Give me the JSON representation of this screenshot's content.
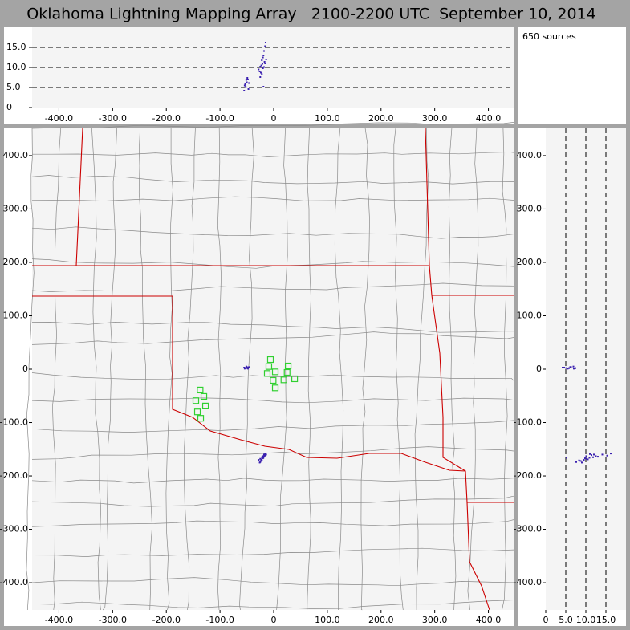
{
  "chart_data": {
    "type": "lma",
    "title": "Oklahoma Lightning Mapping Array   2100-2200 UTC  September 10, 2014",
    "annotation": "650 sources",
    "xlim": [
      -450,
      447
    ],
    "ylim": [
      -451,
      451
    ],
    "altlim": [
      0,
      20
    ],
    "xticks": [
      {
        "value": -400,
        "label": "-400.0"
      },
      {
        "value": -300,
        "label": "-300.0"
      },
      {
        "value": -200,
        "label": "-200.0"
      },
      {
        "value": -100,
        "label": "-100.0"
      },
      0,
      {
        "value": 100,
        "label": "100.0"
      },
      {
        "value": 200,
        "label": "200.0"
      },
      {
        "value": 300,
        "label": "300.0"
      },
      {
        "value": 400,
        "label": "400.0"
      }
    ],
    "yticks": [
      {
        "value": 400,
        "label": "400.0"
      },
      {
        "value": 300,
        "label": "300.0"
      },
      {
        "value": 200,
        "label": "200.0"
      },
      {
        "value": 100,
        "label": "100.0"
      },
      0,
      {
        "value": -100,
        "label": "-100.0"
      },
      {
        "value": -200,
        "label": "-200.0"
      },
      {
        "value": -300,
        "label": "-300.0"
      },
      {
        "value": -400,
        "label": "-400.0"
      }
    ],
    "altticks": [
      0,
      {
        "value": 5,
        "label": "5.0"
      },
      {
        "value": 10,
        "label": "10.0"
      },
      {
        "value": 15,
        "label": "15.0"
      }
    ],
    "grid": true,
    "sources": {
      "color": "#3a20b0",
      "x": [
        -55,
        -52,
        -50,
        -48,
        -53,
        -47,
        -51,
        -49,
        -54,
        -46,
        -28,
        -25,
        -22,
        -20,
        -18,
        -16,
        -24,
        -21,
        -19,
        -17,
        -26,
        -23,
        -15,
        -14,
        -20,
        -22,
        -18,
        -25,
        -16,
        -19
      ],
      "y": [
        3,
        2,
        4,
        1,
        2,
        3,
        5,
        2,
        1,
        4,
        -170,
        -168,
        -165,
        -163,
        -160,
        -162,
        -172,
        -166,
        -164,
        -161,
        -175,
        -169,
        -158,
        -160,
        -167,
        -171,
        -163,
        -174,
        -159,
        -166
      ],
      "alt": [
        4.2,
        5.1,
        6.3,
        7.0,
        5.8,
        4.6,
        6.9,
        7.4,
        5.5,
        6.1,
        9.5,
        10.2,
        11.8,
        12.5,
        14.1,
        15.3,
        8.7,
        10.9,
        13.0,
        11.4,
        9.0,
        10.5,
        16.2,
        12.0,
        9.8,
        8.3,
        10.1,
        7.6,
        11.0,
        5.2
      ]
    },
    "stations": {
      "color": "#30d030",
      "x": [
        -6,
        -9,
        -12,
        3,
        27,
        25,
        19,
        39,
        -1,
        3,
        -137,
        -130,
        -127,
        -145,
        -142,
        -136
      ],
      "y": [
        18,
        5,
        -8,
        -5,
        6,
        -6,
        -20,
        -18,
        -21,
        -35,
        -39,
        -51,
        -69,
        -59,
        -80,
        -92
      ]
    }
  }
}
